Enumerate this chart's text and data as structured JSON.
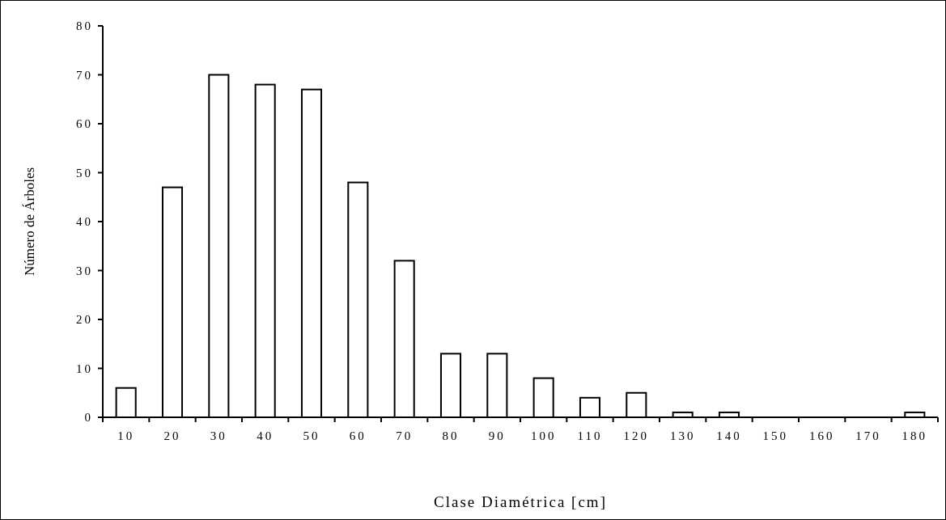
{
  "chart_data": {
    "type": "bar",
    "xlabel": "Clase Diamétrica [cm]",
    "ylabel": "Número de Árboles",
    "categories": [
      "10",
      "20",
      "30",
      "40",
      "50",
      "60",
      "70",
      "80",
      "90",
      "100",
      "110",
      "120",
      "130",
      "140",
      "150",
      "160",
      "170",
      "180"
    ],
    "values": [
      6,
      47,
      70,
      68,
      67,
      48,
      32,
      13,
      13,
      8,
      4,
      5,
      1,
      1,
      0,
      0,
      0,
      1
    ],
    "color": "#ffffff",
    "ylim": [
      0,
      80
    ],
    "yticks": [
      0,
      10,
      20,
      30,
      40,
      50,
      60,
      70,
      80
    ],
    "grid": false
  }
}
